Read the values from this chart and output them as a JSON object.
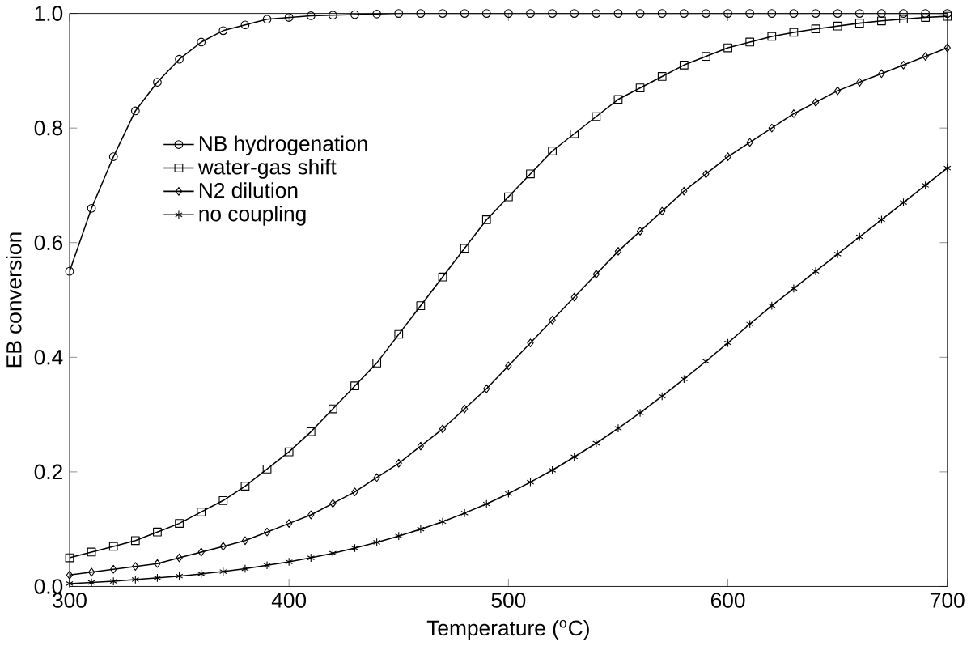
{
  "chart_data": {
    "type": "line",
    "xlabel": "Temperature ($^{o}$C)",
    "ylabel": "EB conversion",
    "x": [
      300,
      310,
      320,
      330,
      340,
      350,
      360,
      370,
      380,
      390,
      400,
      410,
      420,
      430,
      440,
      450,
      460,
      470,
      480,
      490,
      500,
      510,
      520,
      530,
      540,
      550,
      560,
      570,
      580,
      590,
      600,
      610,
      620,
      630,
      640,
      650,
      660,
      670,
      680,
      690,
      700
    ],
    "series": [
      {
        "name": "NB hydrogenation",
        "color": "#000000",
        "marker": "circle",
        "values": [
          0.55,
          0.66,
          0.75,
          0.83,
          0.88,
          0.92,
          0.95,
          0.97,
          0.98,
          0.99,
          0.993,
          0.996,
          0.997,
          0.998,
          0.999,
          1.0,
          1.0,
          1.0,
          1.0,
          1.0,
          1.0,
          1.0,
          1.0,
          1.0,
          1.0,
          1.0,
          1.0,
          1.0,
          1.0,
          1.0,
          1.0,
          1.0,
          1.0,
          1.0,
          1.0,
          1.0,
          1.0,
          1.0,
          1.0,
          1.0,
          1.0
        ]
      },
      {
        "name": "water-gas shift",
        "color": "#000000",
        "marker": "square",
        "values": [
          0.05,
          0.06,
          0.07,
          0.08,
          0.095,
          0.11,
          0.13,
          0.15,
          0.175,
          0.205,
          0.235,
          0.27,
          0.31,
          0.35,
          0.39,
          0.44,
          0.49,
          0.54,
          0.59,
          0.64,
          0.68,
          0.72,
          0.76,
          0.79,
          0.82,
          0.85,
          0.87,
          0.89,
          0.91,
          0.925,
          0.94,
          0.95,
          0.96,
          0.967,
          0.973,
          0.978,
          0.983,
          0.987,
          0.99,
          0.993,
          0.995
        ]
      },
      {
        "name": "N2 dilution",
        "color": "#000000",
        "marker": "diamond",
        "values": [
          0.02,
          0.025,
          0.03,
          0.035,
          0.04,
          0.05,
          0.06,
          0.07,
          0.08,
          0.095,
          0.11,
          0.125,
          0.145,
          0.165,
          0.19,
          0.215,
          0.245,
          0.275,
          0.31,
          0.345,
          0.385,
          0.425,
          0.465,
          0.505,
          0.545,
          0.585,
          0.62,
          0.655,
          0.69,
          0.72,
          0.75,
          0.775,
          0.8,
          0.825,
          0.845,
          0.865,
          0.88,
          0.895,
          0.91,
          0.925,
          0.94
        ]
      },
      {
        "name": "no coupling",
        "color": "#000000",
        "marker": "cross",
        "values": [
          0.005,
          0.007,
          0.009,
          0.012,
          0.015,
          0.018,
          0.022,
          0.026,
          0.031,
          0.037,
          0.043,
          0.05,
          0.058,
          0.067,
          0.077,
          0.088,
          0.1,
          0.113,
          0.128,
          0.144,
          0.162,
          0.182,
          0.203,
          0.226,
          0.25,
          0.276,
          0.303,
          0.332,
          0.362,
          0.393,
          0.425,
          0.458,
          0.49,
          0.52,
          0.55,
          0.58,
          0.61,
          0.64,
          0.67,
          0.7,
          0.73
        ]
      }
    ],
    "xlim": [
      300,
      700
    ],
    "ylim": [
      0,
      1
    ],
    "xticks": [
      300,
      400,
      500,
      600,
      700
    ],
    "yticks": [
      {
        "value": 0,
        "label": "0.0"
      },
      {
        "value": 0.2,
        "label": "0.2"
      },
      {
        "value": 0.4,
        "label": "0.4"
      },
      {
        "value": 0.6,
        "label": "0.6"
      },
      {
        "value": 0.8,
        "label": "0.8"
      },
      {
        "value": 1,
        "label": "1.0"
      }
    ],
    "legend": "top left",
    "grid": false,
    "line_style": "solid"
  }
}
